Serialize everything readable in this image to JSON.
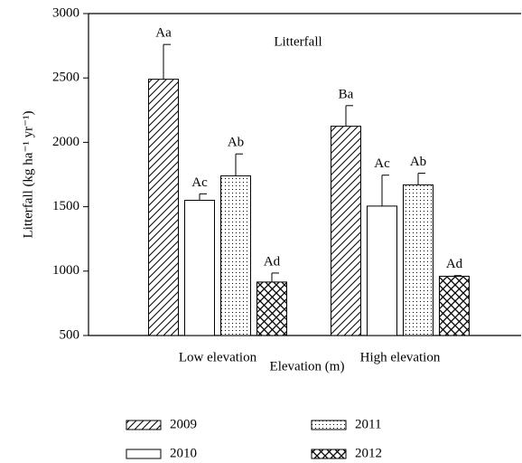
{
  "chart_data": {
    "type": "bar",
    "title": "Litterfall",
    "x_label": "Elevation (m)",
    "y_label": "Litterfall (kg ha⁻¹ yr⁻¹)",
    "categories": [
      "Low elevation",
      "High elevation"
    ],
    "ylim": [
      500,
      3000
    ],
    "yticks": [
      500,
      1000,
      1500,
      2000,
      2500,
      3000
    ],
    "series": [
      {
        "name": "2009",
        "color": "#000000",
        "pattern": "diagonal",
        "values": [
          2490,
          2125
        ],
        "errors": [
          270,
          160
        ],
        "labels": [
          "Aa",
          "Ba"
        ]
      },
      {
        "name": "2010",
        "color": "#000000",
        "pattern": "none",
        "values": [
          1550,
          1505
        ],
        "errors": [
          50,
          240
        ],
        "labels": [
          "Ac",
          "Ac"
        ]
      },
      {
        "name": "2011",
        "color": "#000000",
        "pattern": "dots",
        "values": [
          1740,
          1670
        ],
        "errors": [
          170,
          90
        ],
        "labels": [
          "Ab",
          "Ab"
        ]
      },
      {
        "name": "2012",
        "color": "#000000",
        "pattern": "crosshatch",
        "values": [
          915,
          960
        ],
        "errors": [
          70,
          5
        ],
        "labels": [
          "Ad",
          "Ad"
        ]
      }
    ],
    "legend": "bottom"
  }
}
